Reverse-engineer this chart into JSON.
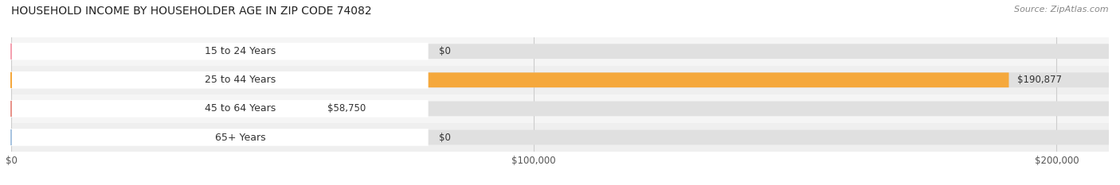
{
  "title": "HOUSEHOLD INCOME BY HOUSEHOLDER AGE IN ZIP CODE 74082",
  "source": "Source: ZipAtlas.com",
  "categories": [
    "15 to 24 Years",
    "25 to 44 Years",
    "45 to 64 Years",
    "65+ Years"
  ],
  "values": [
    0,
    190877,
    58750,
    0
  ],
  "bar_colors": [
    "#f4a0b0",
    "#f5a83c",
    "#e8938a",
    "#a8c4e0"
  ],
  "xlim": [
    0,
    210000
  ],
  "xticks": [
    0,
    100000,
    200000
  ],
  "xticklabels": [
    "$0",
    "$100,000",
    "$200,000"
  ],
  "value_labels": [
    "$0",
    "$190,877",
    "$58,750",
    "$0"
  ],
  "figsize": [
    14.06,
    2.33
  ],
  "dpi": 100,
  "background_color": "#ffffff",
  "bar_height": 0.52
}
